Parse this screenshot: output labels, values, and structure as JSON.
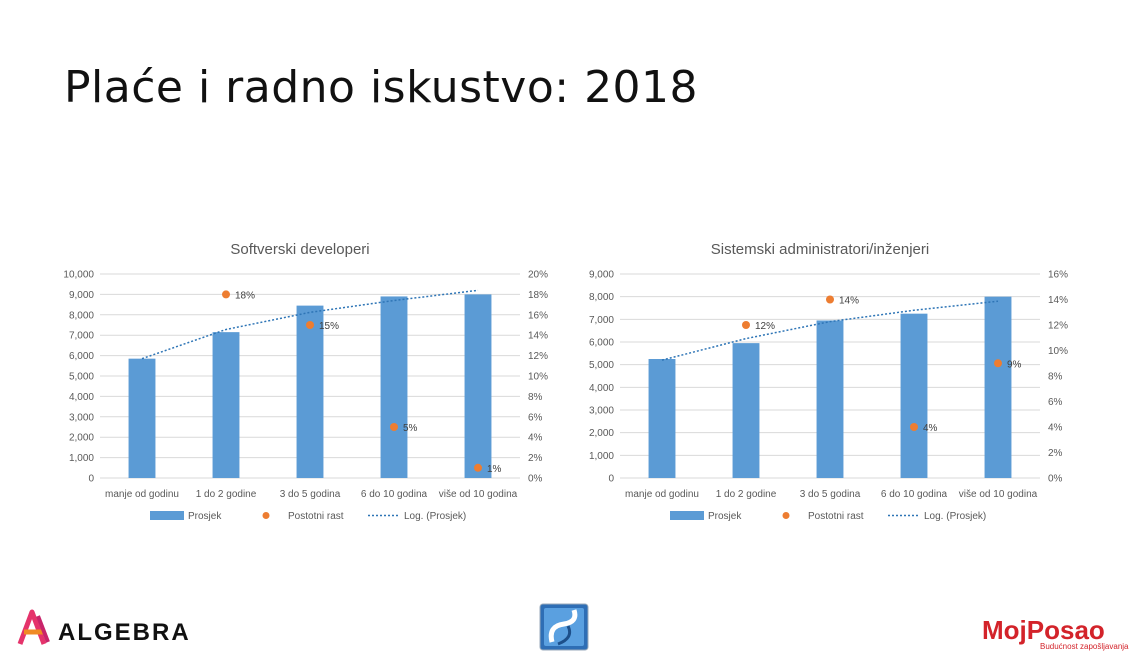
{
  "slide": {
    "title": "Plaće i radno iskustvo: 2018"
  },
  "colors": {
    "bar": "#5B9BD5",
    "dot": "#ED7D31",
    "trend": "#2E75B6",
    "grid": "#D9D9D9",
    "text": "#595959"
  },
  "legend": {
    "bar": "Prosjek",
    "dot": "Postotni rast",
    "trend": "Log. (Prosjek)"
  },
  "logos": {
    "algebra": "ALGEBRA",
    "mojposao": "MojPosao",
    "mojposao_tagline": "Budućnost zapošljavanja"
  },
  "chart_data": [
    {
      "type": "bar",
      "title": "Softverski developeri",
      "categories": [
        "manje od godinu",
        "1 do 2 godine",
        "3 do 5 godina",
        "6 do 10 godina",
        "više od 10 godina"
      ],
      "ylim": [
        0,
        10000
      ],
      "y_ticks": [
        "0",
        "1,000",
        "2,000",
        "3,000",
        "4,000",
        "5,000",
        "6,000",
        "7,000",
        "8,000",
        "9,000",
        "10,000"
      ],
      "y2lim": [
        0,
        20
      ],
      "y2_ticks": [
        "0%",
        "2%",
        "4%",
        "6%",
        "8%",
        "10%",
        "12%",
        "14%",
        "16%",
        "18%",
        "20%"
      ],
      "grid": true,
      "legend_position": "bottom",
      "series": [
        {
          "name": "Prosjek",
          "type": "bar",
          "axis": "left",
          "values": [
            5850,
            7150,
            8450,
            8900,
            9000
          ]
        },
        {
          "name": "Postotni rast",
          "type": "scatter",
          "axis": "right",
          "values": [
            null,
            18,
            15,
            5,
            1
          ],
          "labels": [
            "",
            "18%",
            "15%",
            "5%",
            "1%"
          ]
        },
        {
          "name": "Log. (Prosjek)",
          "type": "trendline",
          "axis": "left",
          "values": [
            5850,
            7280,
            8120,
            8700,
            9200
          ]
        }
      ]
    },
    {
      "type": "bar",
      "title": "Sistemski administratori/inženjeri",
      "categories": [
        "manje od godinu",
        "1 do 2 godine",
        "3 do 5 godina",
        "6 do 10 godina",
        "više od 10 godina"
      ],
      "ylim": [
        0,
        9000
      ],
      "y_ticks": [
        "0",
        "1,000",
        "2,000",
        "3,000",
        "4,000",
        "5,000",
        "6,000",
        "7,000",
        "8,000",
        "9,000"
      ],
      "y2lim": [
        0,
        16
      ],
      "y2_ticks": [
        "0%",
        "2%",
        "4%",
        "6%",
        "8%",
        "10%",
        "12%",
        "14%",
        "16%"
      ],
      "grid": true,
      "legend_position": "bottom",
      "series": [
        {
          "name": "Prosjek",
          "type": "bar",
          "axis": "left",
          "values": [
            5250,
            5950,
            6950,
            7250,
            8000
          ]
        },
        {
          "name": "Postotni rast",
          "type": "scatter",
          "axis": "right",
          "values": [
            null,
            12,
            14,
            4,
            9
          ],
          "labels": [
            "",
            "12%",
            "14%",
            "4%",
            "9%"
          ]
        },
        {
          "name": "Log. (Prosjek)",
          "type": "trendline",
          "axis": "left",
          "values": [
            5200,
            6150,
            6900,
            7400,
            7800
          ]
        }
      ]
    }
  ]
}
